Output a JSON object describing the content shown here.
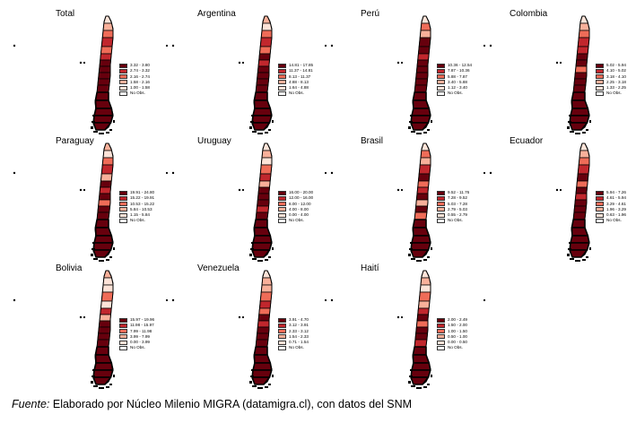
{
  "legend_colors": [
    "#67000d",
    "#c1272d",
    "#ef6c58",
    "#f9b09a",
    "#fde3d8",
    "#ffffff"
  ],
  "panels": [
    {
      "title": "Total",
      "legend": [
        "3.32 - 3.80",
        "2.74 - 3.32",
        "2.16 - 2.74",
        "1.58 - 2.16",
        "1.00 - 1.58",
        "No Obs."
      ]
    },
    {
      "title": "Argentina",
      "legend": [
        "14.81 - 17.85",
        "11.37 - 14.81",
        "8.13 - 11.37",
        "4.88 - 8.13",
        "1.64 - 4.88",
        "No Obs."
      ]
    },
    {
      "title": "Perú",
      "legend": [
        "10.36 - 12.54",
        "7.87 - 10.36",
        "5.88 - 7.87",
        "3.40 - 5.88",
        "1.12 - 3.40",
        "No Obs."
      ]
    },
    {
      "title": "Colombia",
      "legend": [
        "5.02 - 5.94",
        "4.10 - 5.02",
        "3.18 - 4.10",
        "2.25 - 3.18",
        "1.33 - 2.25",
        "No Obs."
      ]
    },
    {
      "title": "Paraguay",
      "legend": [
        "19.91 - 24.80",
        "15.22 - 19.91",
        "10.53 - 15.22",
        "5.84 - 10.53",
        "1.15 - 5.84",
        "No Obs."
      ]
    },
    {
      "title": "Uruguay",
      "legend": [
        "16.00 - 20.00",
        "12.00 - 16.00",
        "8.00 - 12.00",
        "4.00 - 8.00",
        "0.00 - 4.00",
        "No Obs."
      ]
    },
    {
      "title": "Brasil",
      "legend": [
        "9.52 - 11.76",
        "7.28 - 9.52",
        "5.03 - 7.28",
        "2.79 - 5.03",
        "0.55 - 2.79",
        "No Obs."
      ]
    },
    {
      "title": "Ecuador",
      "legend": [
        "5.94 - 7.26",
        "4.61 - 5.94",
        "3.29 - 4.61",
        "1.96 - 3.29",
        "0.63 - 1.96",
        "No Obs."
      ]
    },
    {
      "title": "Bolivia",
      "legend": [
        "15.97 - 19.96",
        "11.98 - 15.97",
        "7.99 - 11.98",
        "3.99 - 7.99",
        "0.00 - 3.99",
        "No Obs."
      ]
    },
    {
      "title": "Venezuela",
      "legend": [
        "3.91 - 4.70",
        "3.12 - 3.91",
        "2.33 - 3.12",
        "1.54 - 2.33",
        "0.71 - 1.54",
        "No Obs."
      ]
    },
    {
      "title": "Haití",
      "legend": [
        "2.00 - 2.49",
        "1.50 - 2.00",
        "1.00 - 1.50",
        "0.50 - 1.00",
        "0.00 - 0.50",
        "No Obs."
      ]
    }
  ],
  "caption": {
    "prefix": "Fuente:",
    "text": " Elaborado por Núcleo Milenio MIGRA (datamigra.cl), con datos del SNM"
  }
}
